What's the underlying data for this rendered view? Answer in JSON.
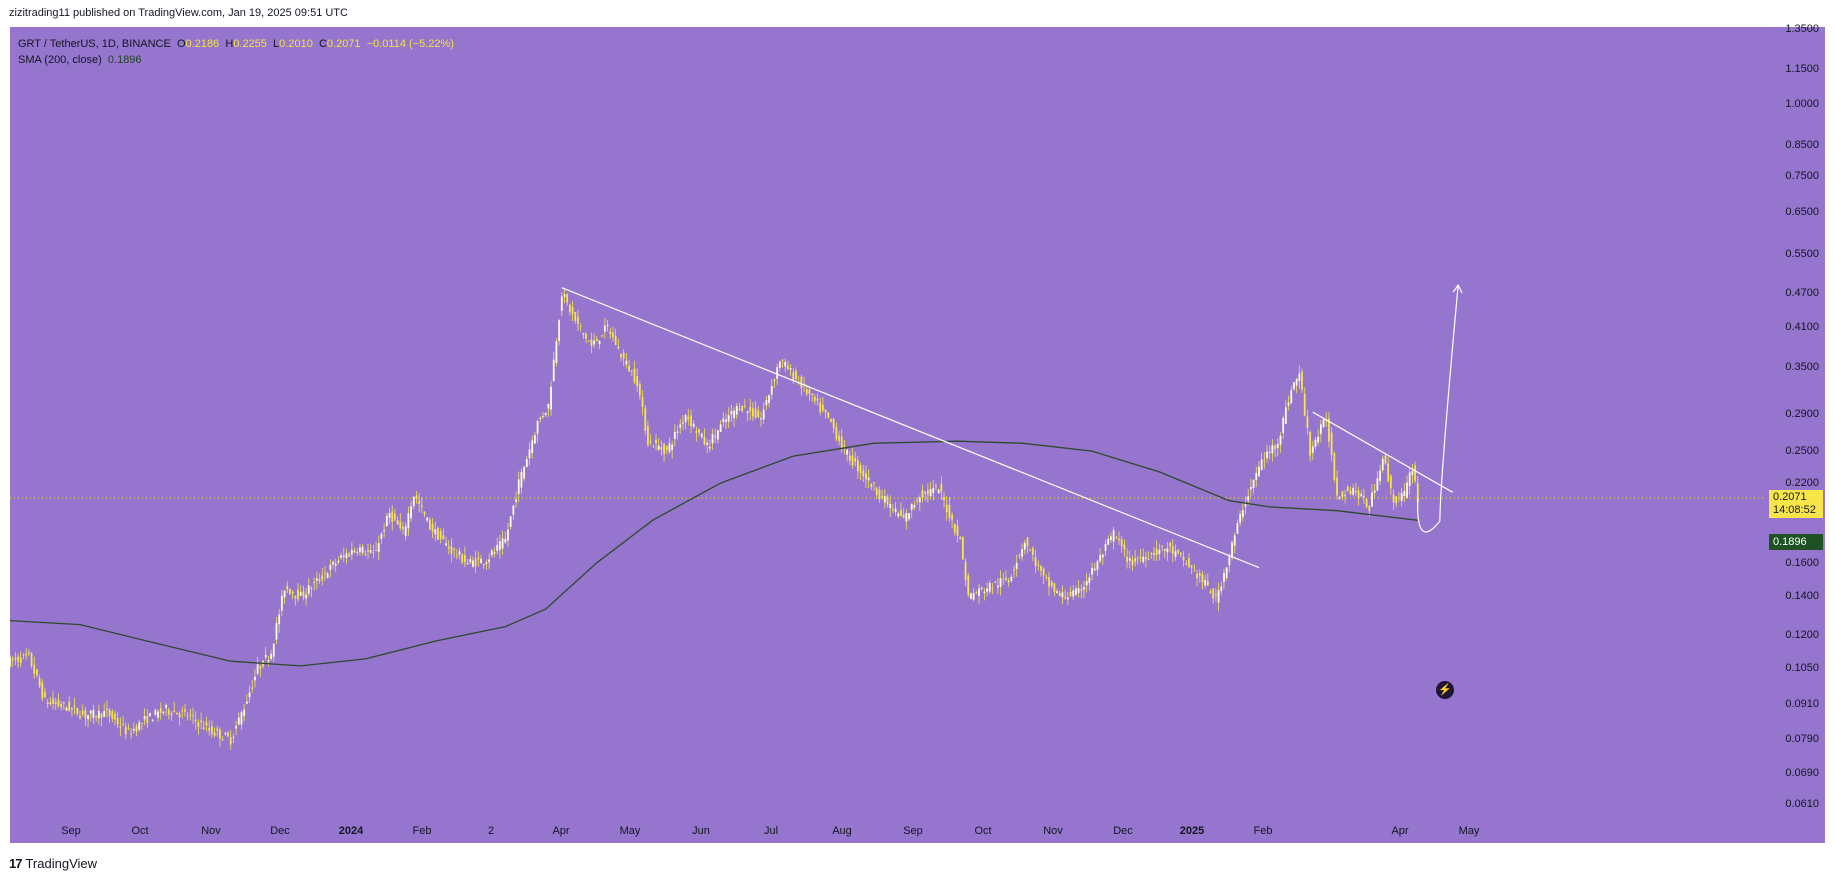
{
  "header": {
    "published": "zizitrading11 published on TradingView.com, Jan 19, 2025 09:51 UTC"
  },
  "legend": {
    "symbol": "GRT / TetherUS, 1D, BINANCE",
    "open_label": "O",
    "open": "0.2186",
    "high_label": "H",
    "high": "0.2255",
    "low_label": "L",
    "low": "0.2010",
    "close_label": "C",
    "close": "0.2071",
    "change": "−0.0114 (−5.22%)",
    "sma_label": "SMA (200, close)",
    "sma_value": "0.1896"
  },
  "price_tag": {
    "price": "0.2071",
    "countdown": "14:08:52"
  },
  "sma_tag": "0.1896",
  "footer": {
    "logo": "17",
    "brand": "TradingView"
  },
  "colors": {
    "background": "#9575cd",
    "candles": "#f7e54a",
    "sma": "#2e4a2e",
    "trendlines": "#ffffff",
    "price_tag": "#f7e54a",
    "sma_tag": "#1e5224"
  },
  "icons": {
    "flash": "lightning-icon"
  },
  "chart_data": {
    "type": "candlestick",
    "title": "GRT / TetherUS, 1D, BINANCE",
    "scale": "log",
    "ylim": [
      0.0575,
      1.36
    ],
    "y_ticks": [
      "1.3500",
      "1.1500",
      "1.0000",
      "0.8500",
      "0.7500",
      "0.6500",
      "0.5500",
      "0.4700",
      "0.4100",
      "0.3500",
      "0.2900",
      "0.2500",
      "0.2200",
      "0.1600",
      "0.1400",
      "0.1200",
      "0.1050",
      "0.0910",
      "0.0790",
      "0.0690",
      "0.0610"
    ],
    "x_ticks": [
      "Sep",
      "Oct",
      "Nov",
      "Dec",
      "2024",
      "Feb",
      "2",
      "Apr",
      "May",
      "Jun",
      "Jul",
      "Aug",
      "Sep",
      "Oct",
      "Nov",
      "Dec",
      "2025",
      "Feb",
      "Apr",
      "May"
    ],
    "x_range": [
      "2023-08-15",
      "2025-05-28"
    ],
    "price_series": {
      "name": "GRT / TetherUS",
      "points": [
        [
          "2023-08-15",
          0.108
        ],
        [
          "2023-08-22",
          0.11
        ],
        [
          "2023-08-28",
          0.092
        ],
        [
          "2023-09-05",
          0.09
        ],
        [
          "2023-09-12",
          0.087
        ],
        [
          "2023-09-20",
          0.088
        ],
        [
          "2023-09-28",
          0.081
        ],
        [
          "2023-10-05",
          0.086
        ],
        [
          "2023-10-12",
          0.089
        ],
        [
          "2023-10-20",
          0.087
        ],
        [
          "2023-10-28",
          0.082
        ],
        [
          "2023-11-05",
          0.079
        ],
        [
          "2023-11-10",
          0.09
        ],
        [
          "2023-11-15",
          0.105
        ],
        [
          "2023-11-20",
          0.112
        ],
        [
          "2023-11-25",
          0.145
        ],
        [
          "2023-12-01",
          0.14
        ],
        [
          "2023-12-08",
          0.15
        ],
        [
          "2023-12-15",
          0.162
        ],
        [
          "2023-12-22",
          0.17
        ],
        [
          "2023-12-28",
          0.165
        ],
        [
          "2024-01-03",
          0.195
        ],
        [
          "2024-01-08",
          0.18
        ],
        [
          "2024-01-12",
          0.21
        ],
        [
          "2024-01-18",
          0.185
        ],
        [
          "2024-01-25",
          0.17
        ],
        [
          "2024-02-01",
          0.16
        ],
        [
          "2024-02-08",
          0.162
        ],
        [
          "2024-02-15",
          0.175
        ],
        [
          "2024-02-20",
          0.22
        ],
        [
          "2024-02-27",
          0.28
        ],
        [
          "2024-03-02",
          0.3
        ],
        [
          "2024-03-07",
          0.47
        ],
        [
          "2024-03-12",
          0.42
        ],
        [
          "2024-03-18",
          0.38
        ],
        [
          "2024-03-24",
          0.41
        ],
        [
          "2024-03-30",
          0.36
        ],
        [
          "2024-04-04",
          0.33
        ],
        [
          "2024-04-08",
          0.26
        ],
        [
          "2024-04-15",
          0.25
        ],
        [
          "2024-04-22",
          0.29
        ],
        [
          "2024-04-30",
          0.255
        ],
        [
          "2024-05-06",
          0.28
        ],
        [
          "2024-05-12",
          0.3
        ],
        [
          "2024-05-20",
          0.285
        ],
        [
          "2024-05-27",
          0.36
        ],
        [
          "2024-06-03",
          0.33
        ],
        [
          "2024-06-10",
          0.3
        ],
        [
          "2024-06-15",
          0.28
        ],
        [
          "2024-06-20",
          0.25
        ],
        [
          "2024-06-28",
          0.225
        ],
        [
          "2024-07-05",
          0.205
        ],
        [
          "2024-07-12",
          0.19
        ],
        [
          "2024-07-18",
          0.21
        ],
        [
          "2024-07-25",
          0.215
        ],
        [
          "2024-08-02",
          0.175
        ],
        [
          "2024-08-05",
          0.14
        ],
        [
          "2024-08-12",
          0.145
        ],
        [
          "2024-08-20",
          0.15
        ],
        [
          "2024-08-26",
          0.175
        ],
        [
          "2024-09-02",
          0.15
        ],
        [
          "2024-09-08",
          0.14
        ],
        [
          "2024-09-15",
          0.142
        ],
        [
          "2024-09-22",
          0.16
        ],
        [
          "2024-09-28",
          0.18
        ],
        [
          "2024-10-04",
          0.16
        ],
        [
          "2024-10-10",
          0.165
        ],
        [
          "2024-10-18",
          0.17
        ],
        [
          "2024-10-25",
          0.16
        ],
        [
          "2024-11-02",
          0.145
        ],
        [
          "2024-11-05",
          0.138
        ],
        [
          "2024-11-10",
          0.165
        ],
        [
          "2024-11-15",
          0.2
        ],
        [
          "2024-11-22",
          0.24
        ],
        [
          "2024-11-28",
          0.26
        ],
        [
          "2024-12-03",
          0.32
        ],
        [
          "2024-12-06",
          0.34
        ],
        [
          "2024-12-10",
          0.25
        ],
        [
          "2024-12-16",
          0.285
        ],
        [
          "2024-12-20",
          0.21
        ],
        [
          "2024-12-26",
          0.215
        ],
        [
          "2025-01-01",
          0.2
        ],
        [
          "2025-01-06",
          0.245
        ],
        [
          "2025-01-10",
          0.205
        ],
        [
          "2025-01-14",
          0.21
        ],
        [
          "2025-01-17",
          0.235
        ],
        [
          "2025-01-19",
          0.207
        ]
      ]
    },
    "sma_series": {
      "name": "SMA (200, close)",
      "points": [
        [
          "2023-08-15",
          0.127
        ],
        [
          "2023-09-10",
          0.125
        ],
        [
          "2023-10-05",
          0.117
        ],
        [
          "2023-11-05",
          0.108
        ],
        [
          "2023-12-01",
          0.106
        ],
        [
          "2023-12-25",
          0.109
        ],
        [
          "2024-01-20",
          0.117
        ],
        [
          "2024-02-15",
          0.124
        ],
        [
          "2024-03-01",
          0.133
        ],
        [
          "2024-03-20",
          0.16
        ],
        [
          "2024-04-10",
          0.19
        ],
        [
          "2024-05-05",
          0.22
        ],
        [
          "2024-06-01",
          0.245
        ],
        [
          "2024-07-01",
          0.258
        ],
        [
          "2024-08-01",
          0.26
        ],
        [
          "2024-08-25",
          0.258
        ],
        [
          "2024-09-20",
          0.25
        ],
        [
          "2024-10-15",
          0.23
        ],
        [
          "2024-11-10",
          0.205
        ],
        [
          "2024-11-25",
          0.2
        ],
        [
          "2024-12-20",
          0.197
        ],
        [
          "2025-01-19",
          0.1896
        ]
      ]
    },
    "trendlines": [
      {
        "name": "major-downtrend",
        "from": [
          "2024-03-07",
          0.48
        ],
        "to": [
          "2024-11-21",
          0.157
        ]
      },
      {
        "name": "minor-downtrend",
        "from": [
          "2024-12-11",
          0.292
        ],
        "to": [
          "2025-02-01",
          0.212
        ]
      }
    ],
    "projection": {
      "from": [
        "2025-01-19",
        0.207
      ],
      "low": [
        "2025-01-22",
        0.189
      ],
      "to": [
        "2025-02-03",
        0.485
      ]
    },
    "last_price": 0.2071,
    "sma_last": 0.1896
  }
}
